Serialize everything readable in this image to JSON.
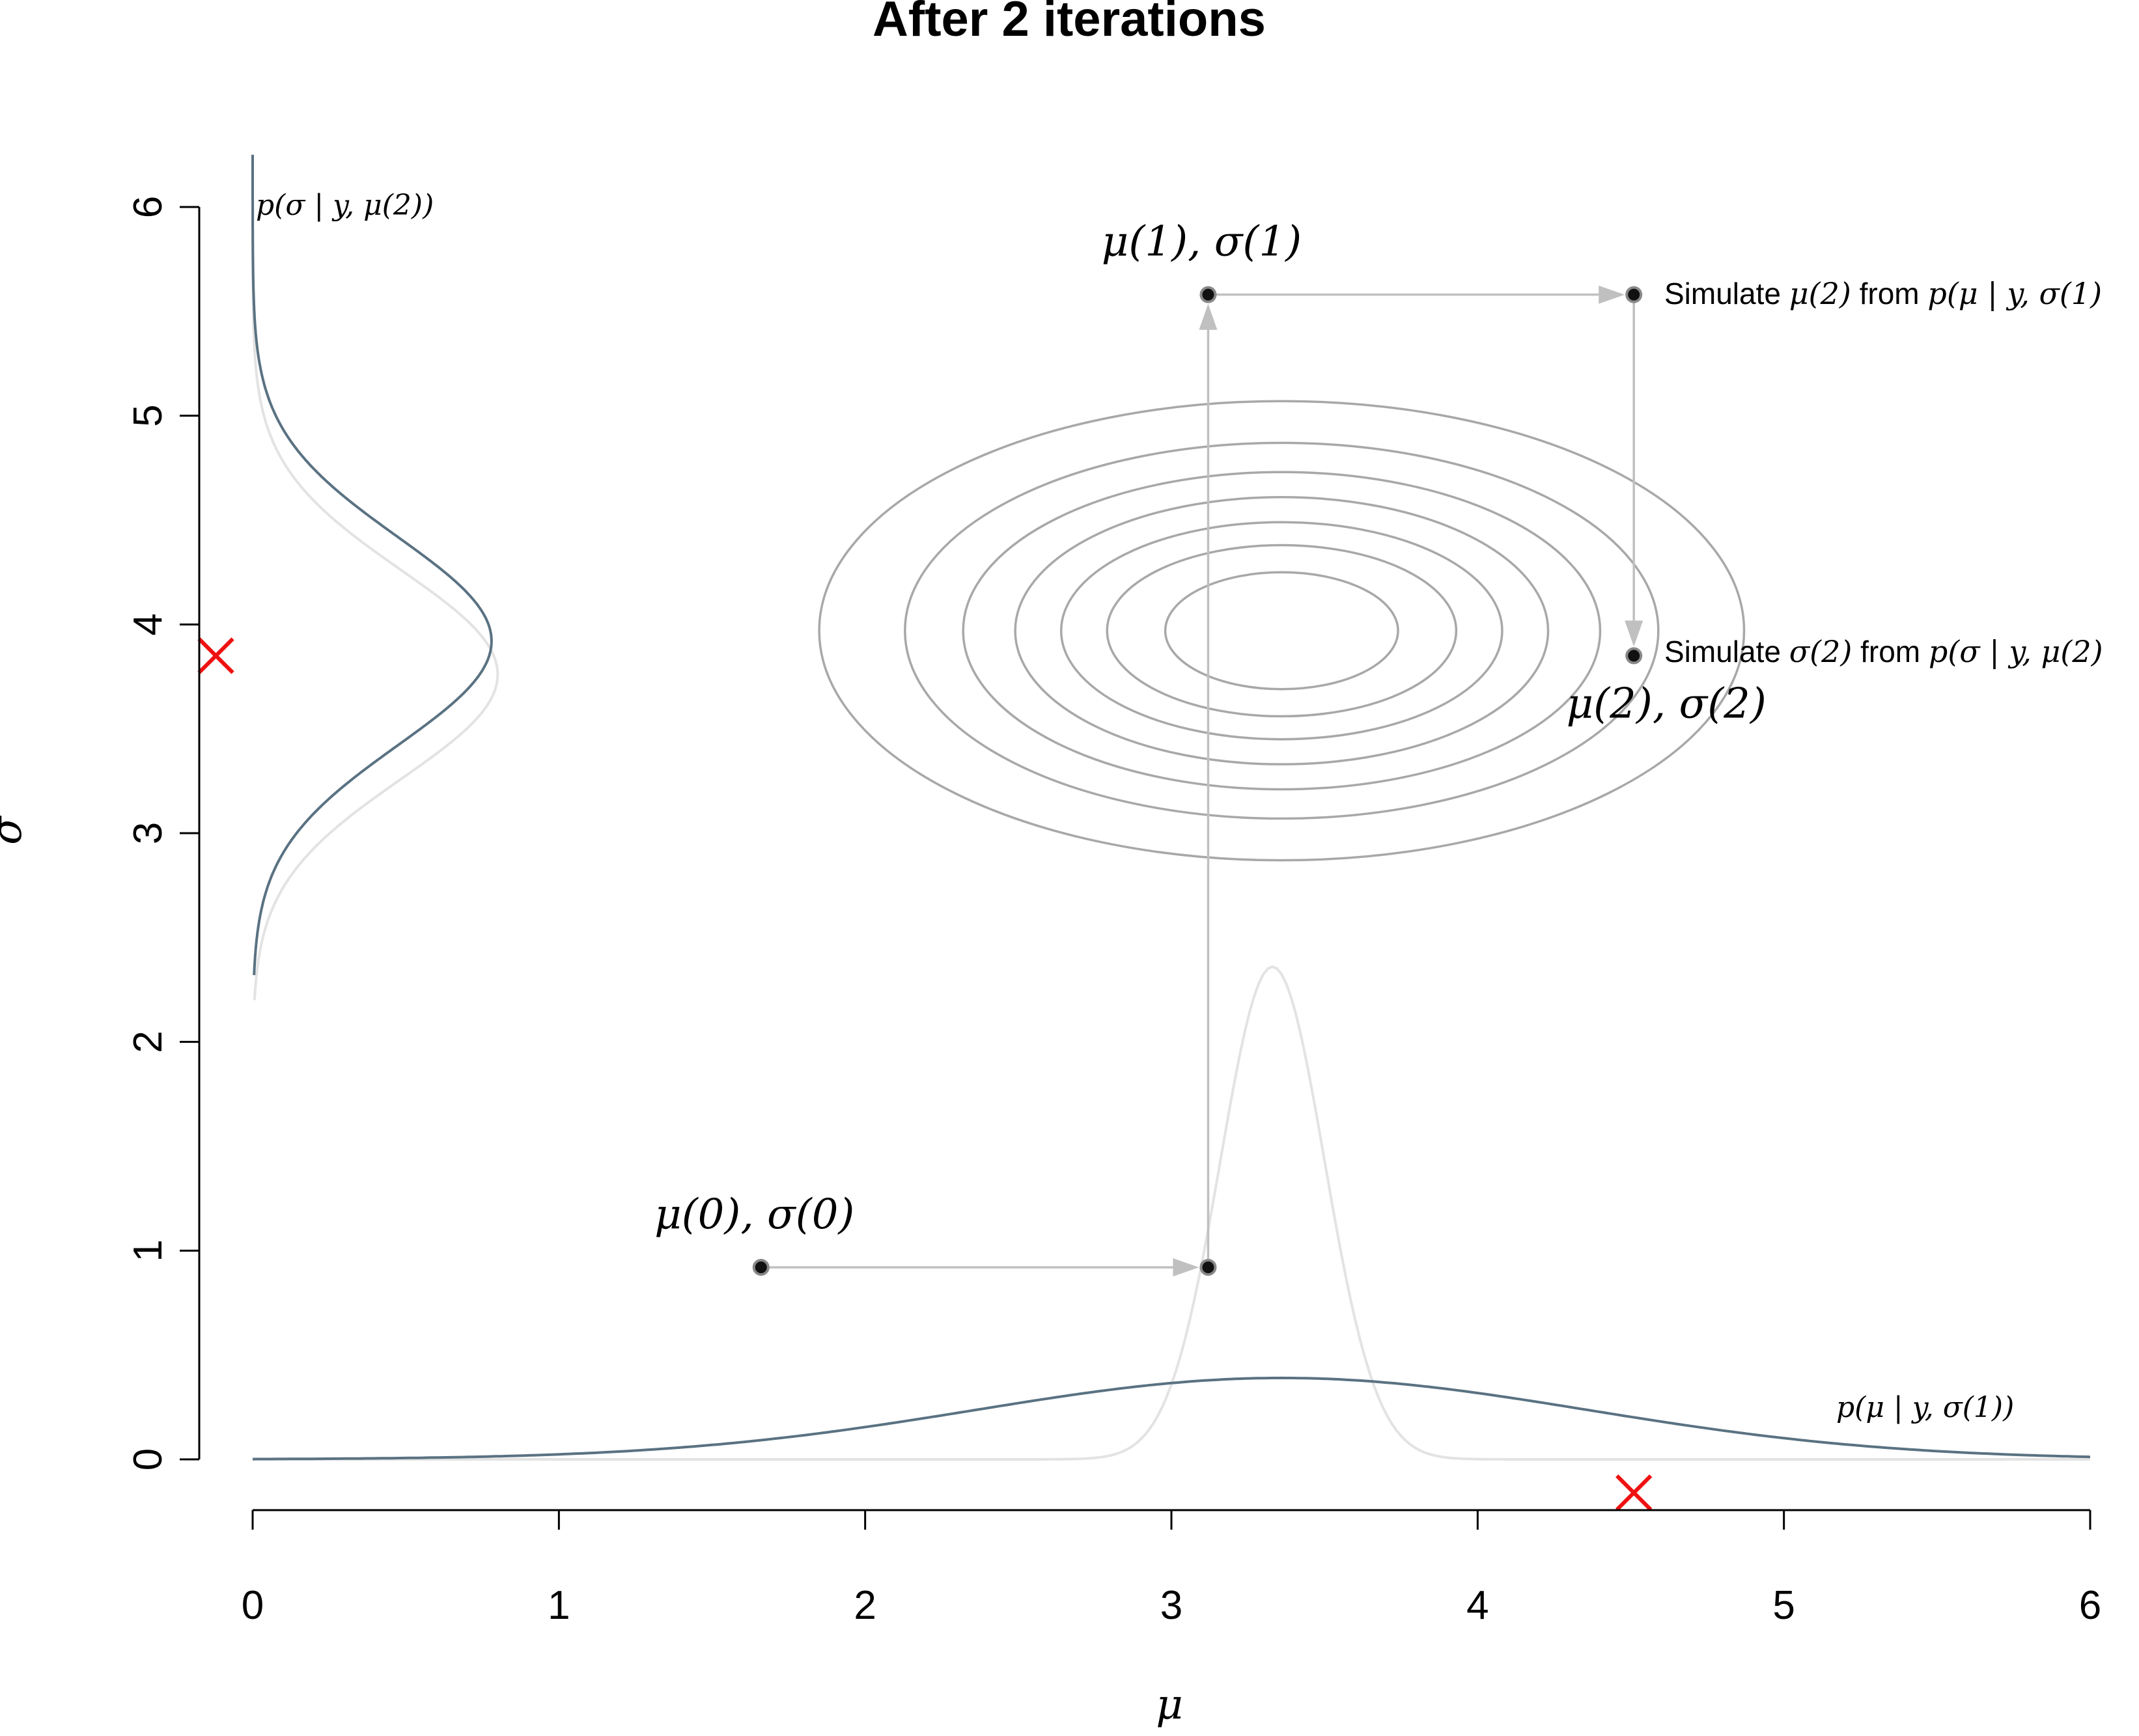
{
  "chart_data": {
    "type": "scatter",
    "title": "After 2 iterations",
    "xlabel": "μ",
    "ylabel": "σ",
    "xlim": [
      0,
      6
    ],
    "ylim": [
      0,
      6
    ],
    "x_ticks": [
      "0",
      "1",
      "2",
      "3",
      "4",
      "5",
      "6"
    ],
    "y_ticks": [
      "0",
      "1",
      "2",
      "3",
      "4",
      "5",
      "6"
    ],
    "grid": false,
    "legend": "none",
    "points": [
      {
        "label": "μ(0), σ(0)",
        "x": 1.66,
        "y": 0.92
      },
      {
        "label": "",
        "x": 3.12,
        "y": 0.92
      },
      {
        "label": "μ(1), σ(1)",
        "x": 3.12,
        "y": 5.58
      },
      {
        "label": "",
        "x": 4.51,
        "y": 5.58
      },
      {
        "label": "μ(2), σ(2)",
        "x": 4.51,
        "y": 3.85
      }
    ],
    "arrows": [
      {
        "from": [
          1.66,
          0.92
        ],
        "to": [
          3.12,
          0.92
        ]
      },
      {
        "from": [
          3.12,
          0.92
        ],
        "to": [
          3.12,
          5.58
        ]
      },
      {
        "from": [
          3.12,
          5.58
        ],
        "to": [
          4.51,
          5.58
        ]
      },
      {
        "from": [
          4.51,
          5.58
        ],
        "to": [
          4.51,
          3.85
        ]
      }
    ],
    "true_values": [
      {
        "x": 4.51,
        "y": -0.16
      },
      {
        "x": -0.12,
        "y": 3.85
      }
    ],
    "contours": {
      "center": [
        3.36,
        3.97
      ],
      "x_radii": [
        1.51,
        1.23,
        1.04,
        0.87,
        0.72,
        0.57,
        0.38
      ],
      "y_radii": [
        1.1,
        0.9,
        0.76,
        0.64,
        0.52,
        0.41,
        0.28
      ]
    },
    "conditional_mu": {
      "label": "p(μ | y, σ(1))",
      "mean": 3.36,
      "sd": 1.0,
      "peak": 0.39
    },
    "conditional_mu_prev": {
      "mean": 3.33,
      "sd": 0.17,
      "peak": 2.36
    },
    "conditional_sigma": {
      "label": "p(σ | y, μ(2))",
      "mean": 3.92,
      "sd": 0.5,
      "peak": 0.78
    },
    "conditional_sigma_prev": {
      "mean": 3.76,
      "sd": 0.5,
      "peak": 0.8
    },
    "annotations": [
      {
        "prefix": "Simulate ",
        "sym": "μ(2)",
        "mid": " from ",
        "dist": "p(μ | y, σ(1)"
      },
      {
        "prefix": "Simulate ",
        "sym": "σ(2)",
        "mid": " from ",
        "dist": "p(σ | y, μ(2)"
      }
    ],
    "colors": {
      "density": "#5a7282",
      "density_prev": "#e3e3e3",
      "contour": "#a8a8a8",
      "arrow": "#c0c0c0",
      "point": "#111111",
      "true_marker": "#ee1111",
      "axis": "#000000"
    }
  }
}
